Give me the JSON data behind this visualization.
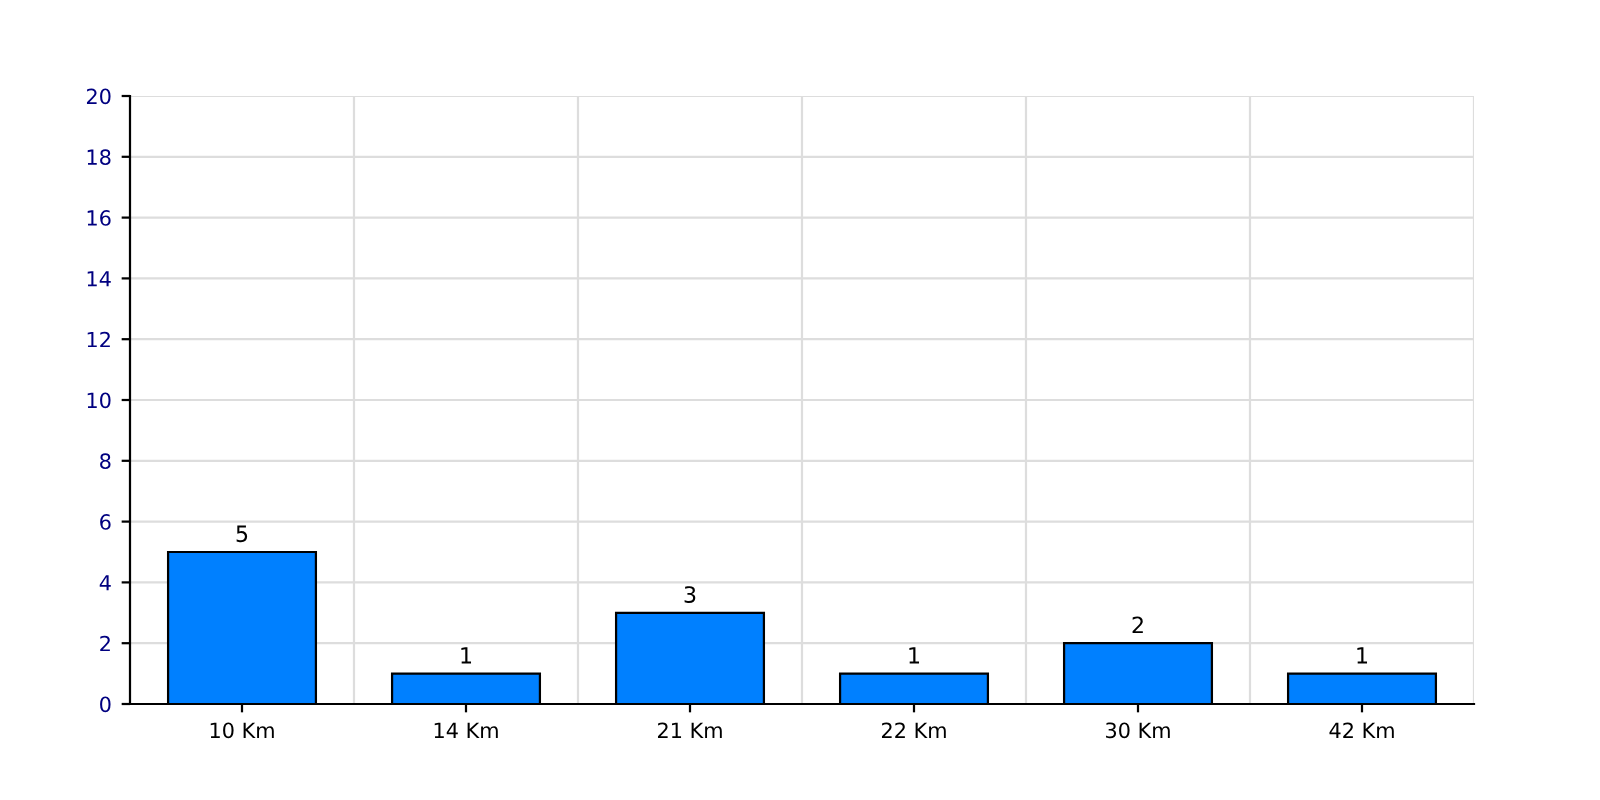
{
  "chart_data": {
    "type": "bar",
    "categories": [
      "10 Km",
      "14 Km",
      "21 Km",
      "22 Km",
      "30 Km",
      "42 Km"
    ],
    "values": [
      5,
      1,
      3,
      1,
      2,
      1
    ],
    "color": "#0080ff",
    "ylim": [
      0,
      20
    ],
    "yticks": [
      0,
      2,
      4,
      6,
      8,
      10,
      12,
      14,
      16,
      18,
      20
    ],
    "grid": true,
    "data_labels": true
  }
}
